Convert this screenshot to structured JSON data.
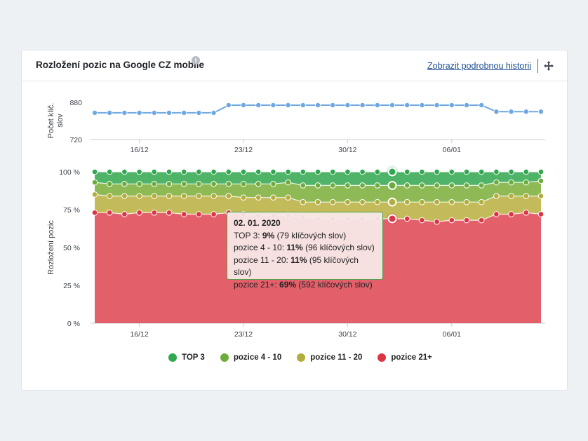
{
  "header": {
    "title": "Rozložení pozic na Google CZ mobile",
    "info_icon": "i",
    "history_link": "Zobrazit podrobnou historii",
    "move_icon": "move-arrows-icon"
  },
  "colors": {
    "line": "#6fa8e0",
    "top3": "#2fa84f",
    "p4_10": "#6aad3c",
    "p11_20": "#b1ad3f",
    "p21": "#dc3545"
  },
  "chart_data": [
    {
      "type": "line",
      "ylabel": "Počet klíč. slov",
      "ylim": [
        720,
        880
      ],
      "yticks": [
        "880",
        "720"
      ],
      "xtick_labels": [
        "16/12",
        "23/12",
        "30/12",
        "06/01"
      ],
      "xtick_indices": [
        3,
        10,
        17,
        24
      ],
      "series": [
        {
          "values": [
            835,
            835,
            835,
            835,
            835,
            835,
            835,
            835,
            835,
            868,
            868,
            868,
            868,
            868,
            868,
            868,
            868,
            868,
            868,
            868,
            868,
            868,
            868,
            868,
            868,
            868,
            868,
            868,
            868,
            868,
            868
          ]
        }
      ],
      "values_override_note": ""
    },
    {
      "type": "area",
      "ylabel": "Rozložení pozic",
      "ylim": [
        0,
        100
      ],
      "yticks": [
        "100 %",
        "75 %",
        "50 %",
        "25 %",
        "0 %"
      ],
      "xtick_labels": [
        "16/12",
        "23/12",
        "30/12",
        "06/01"
      ],
      "xtick_indices": [
        3,
        10,
        17,
        24
      ],
      "series": [
        {
          "name": "TOP 3",
          "values": [
            100,
            100,
            100,
            100,
            100,
            100,
            100,
            100,
            100,
            100,
            100,
            100,
            100,
            100,
            100,
            100,
            100,
            100,
            100,
            100,
            100,
            100,
            100,
            100,
            100,
            100,
            100,
            100,
            100,
            100,
            100
          ]
        },
        {
          "name": "pozice 4 - 10",
          "values": [
            93,
            92,
            92,
            92,
            92,
            92,
            92,
            92,
            92,
            92,
            92,
            92,
            92,
            93,
            91,
            91,
            91,
            91,
            91,
            91,
            91,
            91,
            91,
            91,
            91,
            91,
            91,
            93,
            93,
            93,
            94
          ]
        },
        {
          "name": "pozice 11 - 20",
          "values": [
            85,
            84,
            84,
            84,
            84,
            84,
            84,
            84,
            84,
            84,
            83,
            83,
            83,
            83,
            80,
            80,
            80,
            80,
            80,
            80,
            80,
            80,
            80,
            80,
            80,
            80,
            80,
            84,
            84,
            84,
            84
          ]
        },
        {
          "name": "pozice 21+",
          "values": [
            73,
            73,
            72,
            73,
            73,
            73,
            72,
            72,
            72,
            73,
            72,
            71,
            71,
            71,
            70,
            69,
            69,
            69,
            69,
            69,
            69,
            69,
            68,
            67,
            68,
            68,
            68,
            72,
            72,
            73,
            72
          ]
        }
      ],
      "highlight_index": 20
    }
  ],
  "tooltip": {
    "date": "02. 01. 2020",
    "rows": [
      {
        "label": "TOP 3: ",
        "value": "9%",
        "detail": " (79 klíčových slov)"
      },
      {
        "label": "pozice 4 - 10: ",
        "value": "11%",
        "detail": " (96 klíčových slov)"
      },
      {
        "label": "pozice 11 - 20: ",
        "value": "11%",
        "detail": " (95 klíčových slov)"
      },
      {
        "label": "pozice 21+: ",
        "value": "69%",
        "detail": " (592 klíčových slov)"
      }
    ]
  },
  "legend": [
    {
      "label": "TOP 3",
      "color": "#2fa84f"
    },
    {
      "label": "pozice 4 - 10",
      "color": "#6aad3c"
    },
    {
      "label": "pozice 11 - 20",
      "color": "#b1ad3f"
    },
    {
      "label": "pozice 21+",
      "color": "#dc3545"
    }
  ]
}
